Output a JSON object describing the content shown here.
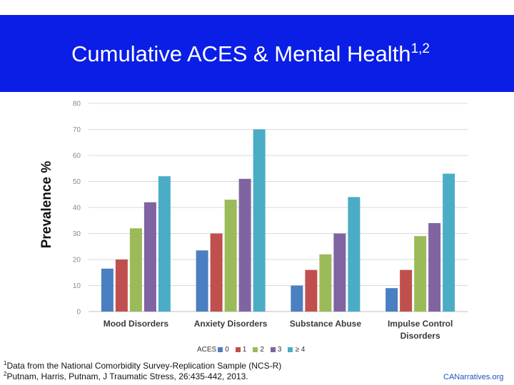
{
  "slide": {
    "title": "Cumulative ACES & Mental Health",
    "title_sup": "1,2",
    "banner_color": "#0a1ee6"
  },
  "legend": {
    "title": "ACES",
    "items": [
      "0",
      "1",
      "2",
      "3",
      "≥ 4"
    ]
  },
  "chart_data": {
    "type": "bar",
    "title": "",
    "xlabel": "",
    "ylabel": "Prevalence %",
    "ylim": [
      0,
      80
    ],
    "yticks": [
      0,
      10,
      20,
      30,
      40,
      50,
      60,
      70,
      80
    ],
    "grid": true,
    "legend_position": "bottom",
    "categories": [
      [
        "Mood Disorders"
      ],
      [
        "Anxiety Disorders"
      ],
      [
        "Substance Abuse"
      ],
      [
        "Impulse Control",
        "Disorders"
      ]
    ],
    "series": [
      {
        "name": "0",
        "color": "#4a7fc1",
        "values": [
          16.5,
          23.5,
          10,
          9
        ]
      },
      {
        "name": "1",
        "color": "#c0504d",
        "values": [
          20,
          30,
          16,
          16
        ]
      },
      {
        "name": "2",
        "color": "#9bbb59",
        "values": [
          32,
          43,
          22,
          29
        ]
      },
      {
        "name": "3",
        "color": "#8064a2",
        "values": [
          42,
          51,
          30,
          34
        ]
      },
      {
        "name": "≥ 4",
        "color": "#4bacc6",
        "values": [
          52,
          70,
          44,
          53
        ]
      }
    ]
  },
  "footnotes": [
    {
      "sup": "1",
      "text": "Data from the National Comorbidity Survey-Replication Sample (NCS-R)"
    },
    {
      "sup": "2",
      "text": "Putnam, Harris, Putnam, J Traumatic Stress, 26:435-442, 2013."
    }
  ],
  "credit": "CANarratives.org"
}
